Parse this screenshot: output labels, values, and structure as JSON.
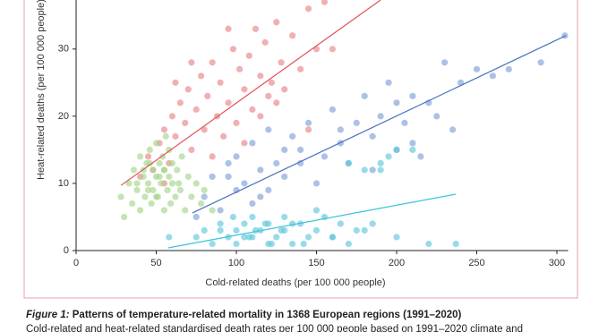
{
  "chart_data": {
    "type": "scatter",
    "x_label": "Cold-related deaths (per 100 000 people)",
    "y_label": "Heat-related deaths (per 100 000 people)",
    "xlim": [
      0,
      307
    ],
    "ylim": [
      0,
      37.3
    ],
    "xticks": [
      0,
      50,
      100,
      150,
      200,
      250,
      300
    ],
    "yticks": [
      0,
      10,
      20,
      30
    ],
    "series": [
      {
        "color": "#e8868a",
        "x": [
          40,
          45,
          48,
          52,
          55,
          58,
          60,
          62,
          65,
          68,
          70,
          72,
          75,
          78,
          80,
          82,
          85,
          88,
          90,
          92,
          95,
          98,
          100,
          102,
          105,
          108,
          110,
          112,
          115,
          118,
          120,
          122,
          125,
          128,
          130,
          135,
          140,
          145,
          150,
          155,
          160,
          55,
          62,
          72,
          85,
          95,
          105,
          115,
          125,
          145
        ],
        "values": [
          11,
          14,
          12,
          16,
          18,
          13,
          20,
          17,
          22,
          19,
          24,
          15,
          21,
          26,
          18,
          23,
          28,
          20,
          25,
          17,
          22,
          30,
          19,
          27,
          24,
          29,
          21,
          33,
          26,
          31,
          23,
          25,
          34,
          28,
          24,
          32,
          27,
          36,
          30,
          37,
          30,
          10,
          25,
          28,
          14,
          33,
          16,
          20,
          22,
          18
        ],
        "trend": {
          "color": "#e0525a",
          "x": [
            28,
            190
          ],
          "values": [
            9.7,
            37.3
          ]
        }
      },
      {
        "color": "#a5d58a",
        "x": [
          28,
          30,
          33,
          35,
          36,
          38,
          40,
          40,
          42,
          43,
          44,
          45,
          46,
          47,
          48,
          48,
          50,
          50,
          51,
          52,
          53,
          54,
          55,
          55,
          56,
          57,
          58,
          59,
          60,
          60,
          62,
          63,
          65,
          66,
          68,
          70,
          72,
          75,
          78,
          80,
          85,
          38,
          42,
          46,
          52,
          58,
          64,
          45,
          50,
          55
        ],
        "values": [
          8,
          5,
          10,
          7,
          12,
          9,
          14,
          6,
          11,
          8,
          13,
          10,
          15,
          7,
          12,
          9,
          16,
          11,
          8,
          13,
          10,
          14,
          6,
          12,
          17,
          9,
          11,
          7,
          13,
          10,
          8,
          12,
          9,
          14,
          6,
          11,
          8,
          10,
          7,
          9,
          6,
          10,
          12,
          13,
          11,
          15,
          10,
          9,
          8,
          12
        ]
      },
      {
        "color": "#7f9fd8",
        "x": [
          75,
          80,
          85,
          90,
          95,
          100,
          100,
          105,
          110,
          110,
          115,
          120,
          120,
          125,
          130,
          130,
          135,
          140,
          145,
          150,
          155,
          160,
          165,
          170,
          175,
          180,
          185,
          190,
          195,
          200,
          200,
          205,
          210,
          215,
          220,
          225,
          230,
          240,
          250,
          260,
          270,
          290,
          305,
          95,
          115,
          140,
          165,
          185,
          210,
          235
        ],
        "values": [
          5,
          8,
          11,
          6,
          13,
          9,
          14,
          10,
          16,
          7,
          12,
          18,
          9,
          13,
          15,
          11,
          17,
          13,
          19,
          10,
          14,
          21,
          16,
          13,
          19,
          23,
          17,
          20,
          25,
          15,
          22,
          19,
          23,
          14,
          22,
          20,
          28,
          25,
          27,
          26,
          27,
          28,
          32,
          11,
          8,
          15,
          18,
          12,
          16,
          18
        ],
        "trend": {
          "color": "#4a72c0",
          "x": [
            72.6,
            305.6
          ],
          "values": [
            5.6,
            32
          ]
        }
      },
      {
        "color": "#5fc8dc",
        "x": [
          58,
          75,
          80,
          85,
          90,
          95,
          100,
          100,
          105,
          110,
          110,
          115,
          120,
          120,
          125,
          130,
          130,
          135,
          140,
          145,
          150,
          155,
          160,
          165,
          170,
          175,
          180,
          185,
          190,
          195,
          200,
          210,
          220,
          237,
          90,
          105,
          118,
          128,
          142,
          160,
          98,
          112,
          135,
          150,
          170,
          180,
          190,
          200,
          108,
          122
        ],
        "values": [
          2,
          2,
          3,
          1,
          4,
          2,
          3,
          1,
          4,
          2,
          5,
          3,
          1,
          4,
          2,
          3,
          5,
          1,
          4,
          2,
          3,
          5,
          2,
          4,
          1,
          3,
          12,
          4,
          13,
          14,
          2,
          15,
          1,
          1,
          3,
          2,
          4,
          3,
          1,
          2,
          5,
          3,
          4,
          6,
          13,
          3,
          12,
          15,
          2,
          1
        ],
        "trend": {
          "color": "#3ec1db",
          "x": [
            57.5,
            237
          ],
          "values": [
            0.4,
            8.4
          ]
        }
      }
    ]
  },
  "caption": {
    "label": "Figure 1:",
    "title": "Patterns of temperature-related mortality in 1368 European regions (1991–2020)",
    "text": "Cold-related and heat-related standardised death rates per 100 000 people based on 1991–2020 climate and"
  }
}
